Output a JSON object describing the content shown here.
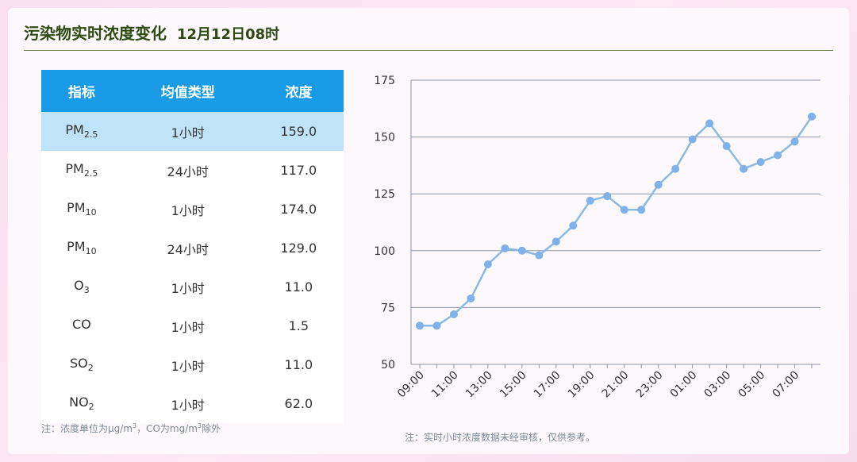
{
  "header": {
    "title": "污染物实时浓度变化",
    "time": "12月12日08时"
  },
  "table": {
    "columns": [
      "指标",
      "均值类型",
      "浓度"
    ],
    "rows": [
      {
        "indicator": "PM",
        "sub": "2.5",
        "type": "1小时",
        "value": "159.0",
        "selected": true
      },
      {
        "indicator": "PM",
        "sub": "2.5",
        "type": "24小时",
        "value": "117.0"
      },
      {
        "indicator": "PM",
        "sub": "10",
        "type": "1小时",
        "value": "174.0"
      },
      {
        "indicator": "PM",
        "sub": "10",
        "type": "24小时",
        "value": "129.0"
      },
      {
        "indicator": "O",
        "sub": "3",
        "type": "1小时",
        "value": "11.0"
      },
      {
        "indicator": "CO",
        "sub": "",
        "type": "1小时",
        "value": "1.5"
      },
      {
        "indicator": "SO",
        "sub": "2",
        "type": "1小时",
        "value": "11.0"
      },
      {
        "indicator": "NO",
        "sub": "2",
        "type": "1小时",
        "value": "62.0"
      }
    ]
  },
  "notes": {
    "left_a": "注：浓度单位为μg/m",
    "left_sup1": "3",
    "left_b": "，CO为mg/m",
    "left_sup2": "3",
    "left_c": "除外",
    "right": "注：实时小时浓度数据未经审核，仅供参考。"
  },
  "colors": {
    "header_bg": "#1a9be8",
    "selected_row": "#bfe3f8",
    "line": "#8ab9e4",
    "point": "#7fb2e8",
    "title": "#2e4a12"
  },
  "chart_data": {
    "type": "line",
    "x": [
      "09:00",
      "10:00",
      "11:00",
      "12:00",
      "13:00",
      "14:00",
      "15:00",
      "16:00",
      "17:00",
      "18:00",
      "19:00",
      "20:00",
      "21:00",
      "22:00",
      "23:00",
      "00:00",
      "01:00",
      "02:00",
      "03:00",
      "04:00",
      "05:00",
      "06:00",
      "07:00",
      "08:00"
    ],
    "x_tick_labels": [
      "09:00",
      "11:00",
      "13:00",
      "15:00",
      "17:00",
      "19:00",
      "21:00",
      "23:00",
      "01:00",
      "03:00",
      "05:00",
      "07:00"
    ],
    "series": [
      {
        "values": [
          67,
          67,
          72,
          79,
          94,
          101,
          100,
          98,
          104,
          111,
          122,
          124,
          118,
          118,
          129,
          136,
          149,
          156,
          146,
          136,
          139,
          142,
          148,
          159
        ]
      }
    ],
    "y_ticks": [
      50,
      75,
      100,
      125,
      150,
      175
    ],
    "ylim": [
      50,
      175
    ],
    "grid": "horizontal"
  }
}
